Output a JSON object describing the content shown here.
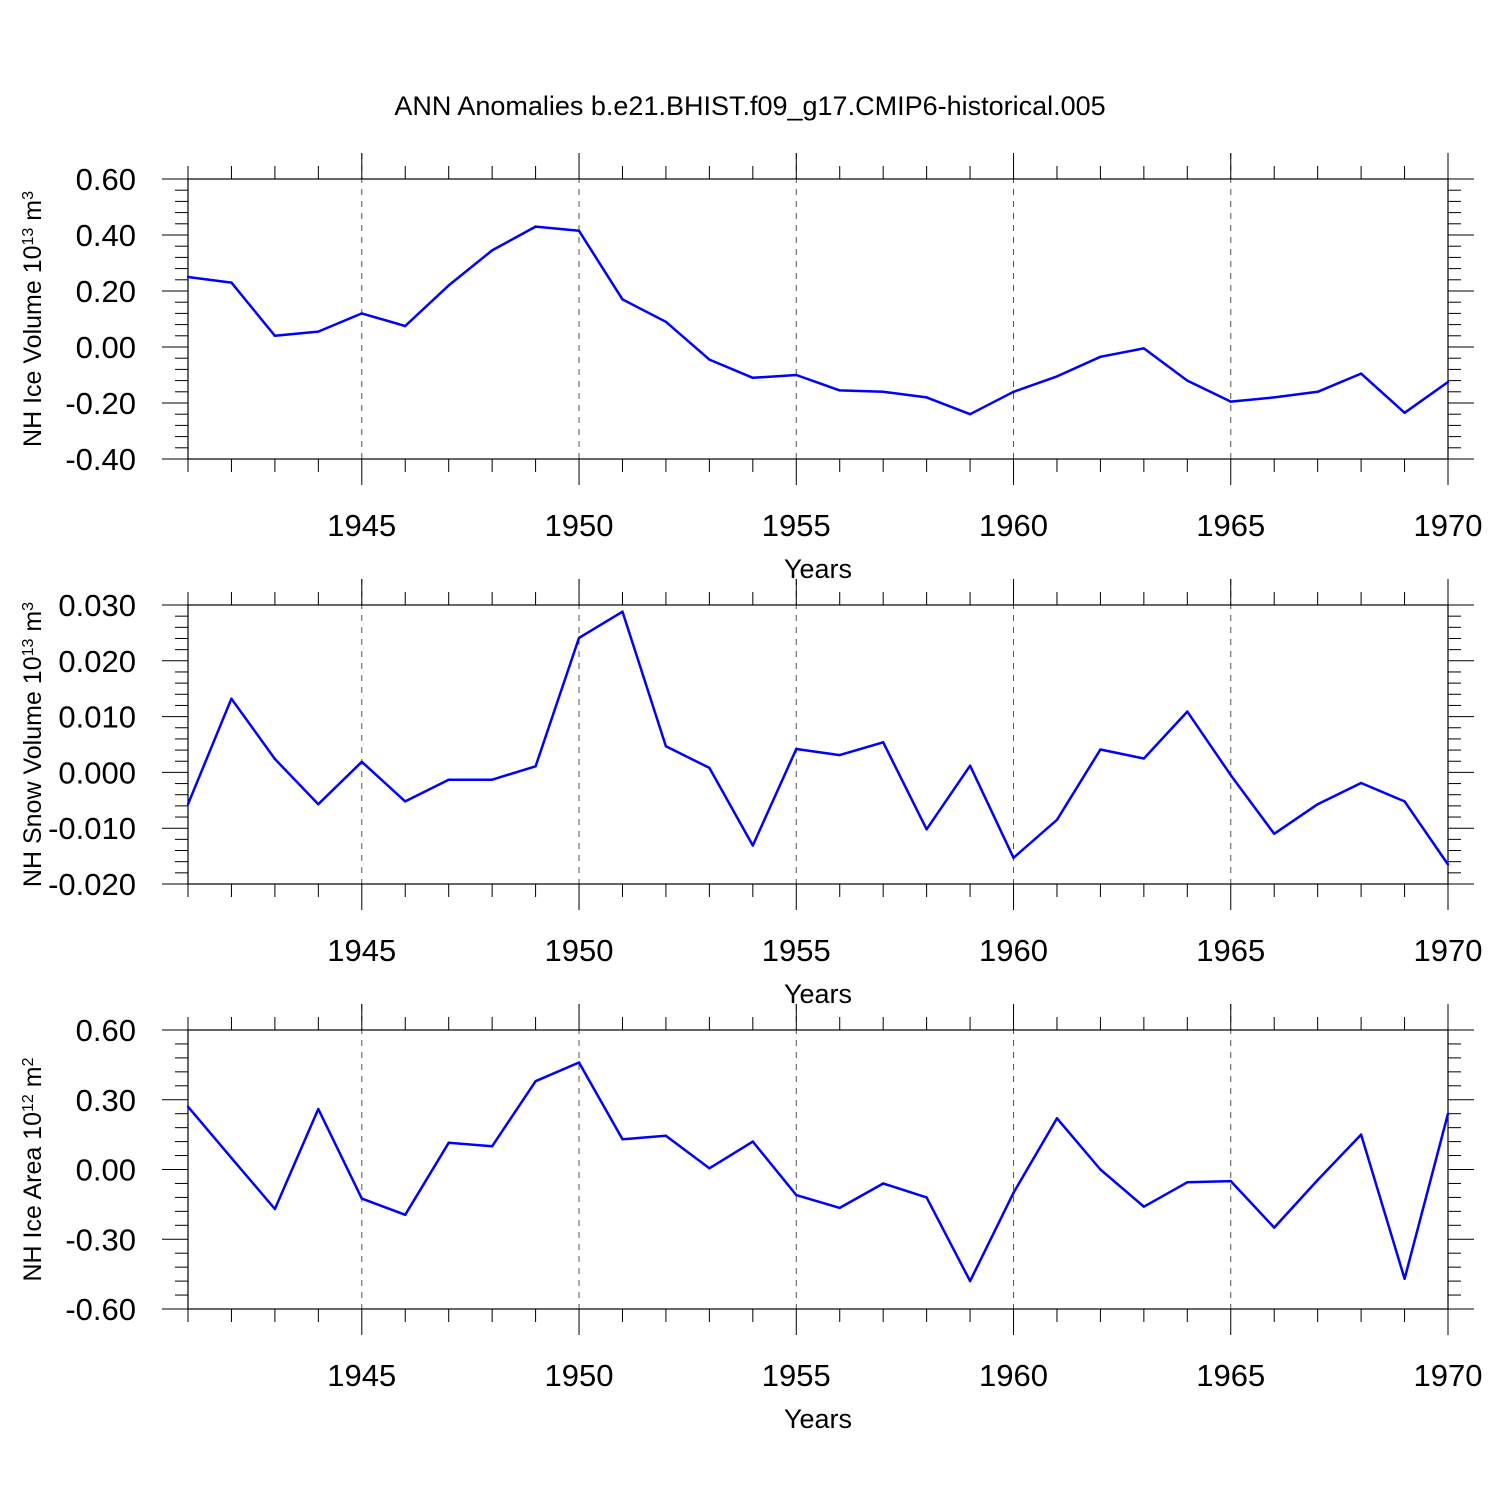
{
  "title": "ANN Anomalies b.e21.BHIST.f09_g17.CMIP6-historical.005",
  "colors": {
    "line": "#0000ff",
    "axis": "#000000",
    "grid": "#555555"
  },
  "chart_data": [
    {
      "type": "line",
      "ylabel": "NH Ice Volume 10",
      "ylabel_exp": "13",
      "ylabel_unit": " m",
      "ylabel_unit_exp": "3",
      "xlabel": "Years",
      "xlim": [
        1941,
        1970
      ],
      "ylim": [
        -0.4,
        0.6
      ],
      "yticks": [
        -0.4,
        -0.2,
        0.0,
        0.2,
        0.4,
        0.6
      ],
      "ytick_labels": [
        "-0.40",
        "-0.20",
        "0.00",
        "0.20",
        "0.40",
        "0.60"
      ],
      "xticks": [
        1945,
        1950,
        1955,
        1960,
        1965,
        1970
      ],
      "xtick_labels": [
        "1945",
        "1950",
        "1955",
        "1960",
        "1965",
        "1970"
      ],
      "grid": "vertical dashed at major x ticks",
      "x": [
        1941,
        1942,
        1943,
        1944,
        1945,
        1946,
        1947,
        1948,
        1949,
        1950,
        1951,
        1952,
        1953,
        1954,
        1955,
        1956,
        1957,
        1958,
        1959,
        1960,
        1961,
        1962,
        1963,
        1964,
        1965,
        1966,
        1967,
        1968,
        1969,
        1970
      ],
      "values": [
        0.25,
        0.23,
        0.04,
        0.055,
        0.12,
        0.075,
        0.22,
        0.345,
        0.43,
        0.415,
        0.17,
        0.09,
        -0.045,
        -0.11,
        -0.1,
        -0.155,
        -0.16,
        -0.18,
        -0.24,
        -0.16,
        -0.105,
        -0.035,
        -0.005,
        -0.12,
        -0.195,
        -0.18,
        -0.16,
        -0.095,
        -0.235,
        -0.125
      ]
    },
    {
      "type": "line",
      "ylabel": "NH Snow Volume 10",
      "ylabel_exp": "13",
      "ylabel_unit": " m",
      "ylabel_unit_exp": "3",
      "xlabel": "Years",
      "xlim": [
        1941,
        1970
      ],
      "ylim": [
        -0.02,
        0.03
      ],
      "yticks": [
        -0.02,
        -0.01,
        0.0,
        0.01,
        0.02,
        0.03
      ],
      "ytick_labels": [
        "-0.020",
        "-0.010",
        "0.000",
        "0.010",
        "0.020",
        "0.030"
      ],
      "xticks": [
        1945,
        1950,
        1955,
        1960,
        1965,
        1970
      ],
      "xtick_labels": [
        "1945",
        "1950",
        "1955",
        "1960",
        "1965",
        "1970"
      ],
      "grid": "vertical dashed at major x ticks",
      "x": [
        1941,
        1942,
        1943,
        1944,
        1945,
        1946,
        1947,
        1948,
        1949,
        1950,
        1951,
        1952,
        1953,
        1954,
        1955,
        1956,
        1957,
        1958,
        1959,
        1960,
        1961,
        1962,
        1963,
        1964,
        1965,
        1966,
        1967,
        1968,
        1969,
        1970
      ],
      "values": [
        -0.0057,
        0.0132,
        0.0024,
        -0.0057,
        0.0019,
        -0.0052,
        -0.0013,
        -0.0013,
        0.0011,
        0.0241,
        0.0288,
        0.0047,
        0.0008,
        -0.0131,
        0.0042,
        0.0031,
        0.0054,
        -0.0102,
        0.0012,
        -0.0153,
        -0.0085,
        0.0041,
        0.0025,
        0.0109,
        -0.0005,
        -0.011,
        -0.0057,
        -0.0019,
        -0.0052,
        -0.0165
      ]
    },
    {
      "type": "line",
      "ylabel": "NH Ice Area 10",
      "ylabel_exp": "12",
      "ylabel_unit": " m",
      "ylabel_unit_exp": "2",
      "xlabel": "Years",
      "xlim": [
        1941,
        1970
      ],
      "ylim": [
        -0.6,
        0.6
      ],
      "yticks": [
        -0.6,
        -0.3,
        0.0,
        0.3,
        0.6
      ],
      "ytick_labels": [
        "-0.60",
        "-0.30",
        "0.00",
        "0.30",
        "0.60"
      ],
      "xticks": [
        1945,
        1950,
        1955,
        1960,
        1965,
        1970
      ],
      "xtick_labels": [
        "1945",
        "1950",
        "1955",
        "1960",
        "1965",
        "1970"
      ],
      "grid": "vertical dashed at major x ticks",
      "x": [
        1941,
        1942,
        1943,
        1944,
        1945,
        1946,
        1947,
        1948,
        1949,
        1950,
        1951,
        1952,
        1953,
        1954,
        1955,
        1956,
        1957,
        1958,
        1959,
        1960,
        1961,
        1962,
        1963,
        1964,
        1965,
        1966,
        1967,
        1968,
        1969,
        1970
      ],
      "values": [
        0.27,
        0.05,
        -0.17,
        0.26,
        -0.125,
        -0.195,
        0.115,
        0.1,
        0.38,
        0.46,
        0.13,
        0.145,
        0.005,
        0.12,
        -0.11,
        -0.165,
        -0.06,
        -0.12,
        -0.48,
        -0.1,
        0.22,
        0.0,
        -0.16,
        -0.055,
        -0.05,
        -0.25,
        -0.045,
        0.15,
        -0.47,
        0.24
      ]
    }
  ]
}
